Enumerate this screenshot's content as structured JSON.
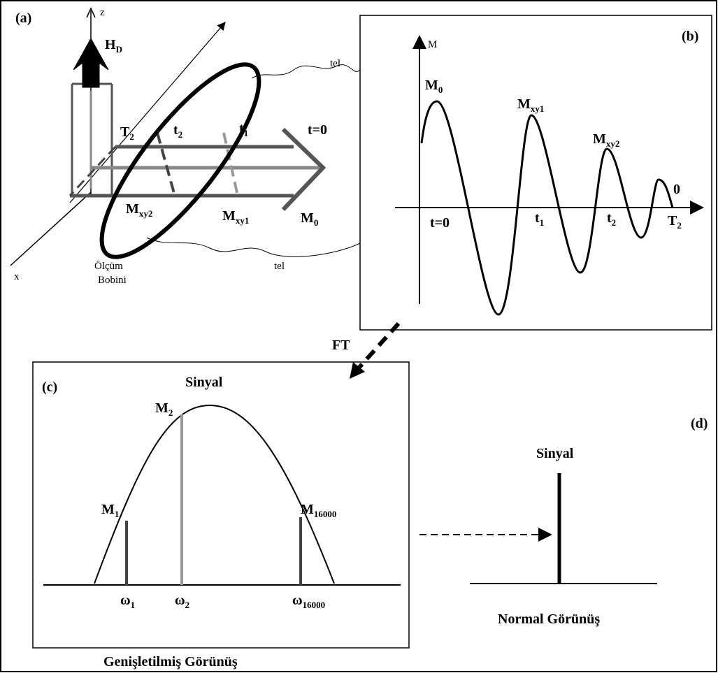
{
  "panel_a": {
    "label": "(a)",
    "axis_z": "z",
    "axis_x": "x",
    "field": {
      "base": "H",
      "sub": "D"
    },
    "time_labels": [
      {
        "base": "T",
        "sub": "2"
      },
      {
        "base": "t",
        "sub": "2"
      },
      {
        "base": "t",
        "sub": "1"
      },
      {
        "base": "t=0",
        "sub": ""
      }
    ],
    "magnetization_labels": [
      {
        "base": "M",
        "sub": "xy2"
      },
      {
        "base": "M",
        "sub": "xy1"
      },
      {
        "base": "M",
        "sub": "0"
      }
    ],
    "coil": [
      "Ölçüm",
      "Bobini"
    ],
    "wire_top": "tel",
    "wire_bottom": "tel"
  },
  "panel_b": {
    "label": "(b)",
    "axis_m": "M",
    "peak_labels": [
      {
        "base": "M",
        "sub": "0"
      },
      {
        "base": "M",
        "sub": "xy1"
      },
      {
        "base": "M",
        "sub": "xy2"
      },
      {
        "base": "0",
        "sub": ""
      }
    ],
    "time_labels": [
      {
        "base": "t=0",
        "sub": ""
      },
      {
        "base": "t",
        "sub": "1"
      },
      {
        "base": "t",
        "sub": "2"
      },
      {
        "base": "T",
        "sub": "2"
      }
    ]
  },
  "ft": "FT",
  "panel_c": {
    "label": "(c)",
    "title": "Sinyal",
    "peak_labels": [
      {
        "base": "M",
        "sub": "2"
      },
      {
        "base": "M",
        "sub": "1"
      },
      {
        "base": "M",
        "sub": "16000"
      }
    ],
    "freq_labels": [
      {
        "base": "ω",
        "sub": "1"
      },
      {
        "base": "ω",
        "sub": "2"
      },
      {
        "base": "ω",
        "sub": "16000"
      }
    ],
    "caption": "Genişletilmiş Görünüş"
  },
  "panel_d": {
    "label": "(d)",
    "title": "Sinyal",
    "caption": "Normal Görünüş"
  }
}
